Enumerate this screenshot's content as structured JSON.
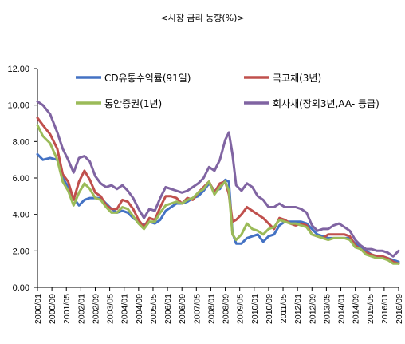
{
  "chart_data": {
    "type": "line",
    "title": "<시장 금리 동향(%)>",
    "xlabel": "",
    "ylabel": "",
    "ylim": [
      0,
      12
    ],
    "yticks": [
      "0.00",
      "2.00",
      "4.00",
      "6.00",
      "8.00",
      "10.00",
      "12.00"
    ],
    "xlim": [
      "2000/01",
      "2016/09"
    ],
    "xticks": [
      "2000/01",
      "2000/09",
      "2001/05",
      "2002/01",
      "2002/09",
      "2003/05",
      "2004/01",
      "2004/09",
      "2005/05",
      "2006/01",
      "2006/09",
      "2007/05",
      "2008/01",
      "2008/09",
      "2009/05",
      "2010/01",
      "2010/09",
      "2011/05",
      "2012/01",
      "2012/09",
      "2013/05",
      "2014/01",
      "2014/09",
      "2015/05",
      "2016/01",
      "2016/09"
    ],
    "grid": false,
    "legend_position": "top",
    "series": [
      {
        "name": "CD유통수익률(91일)",
        "color": "#4472C4",
        "x": [
          "2000/01",
          "2000/04",
          "2000/08",
          "2000/12",
          "2001/03",
          "2001/06",
          "2001/09",
          "2001/12",
          "2002/03",
          "2002/06",
          "2002/09",
          "2002/12",
          "2003/03",
          "2003/06",
          "2003/09",
          "2003/12",
          "2004/03",
          "2004/06",
          "2004/09",
          "2004/12",
          "2005/03",
          "2005/06",
          "2005/09",
          "2005/12",
          "2006/03",
          "2006/06",
          "2006/09",
          "2006/12",
          "2007/03",
          "2007/06",
          "2007/09",
          "2007/12",
          "2008/03",
          "2008/06",
          "2008/09",
          "2008/11",
          "2009/01",
          "2009/03",
          "2009/06",
          "2009/09",
          "2009/12",
          "2010/03",
          "2010/06",
          "2010/09",
          "2010/12",
          "2011/03",
          "2011/06",
          "2011/09",
          "2011/12",
          "2012/03",
          "2012/06",
          "2012/09",
          "2012/12",
          "2013/03",
          "2013/06",
          "2013/09",
          "2013/12",
          "2014/03",
          "2014/06",
          "2014/09",
          "2014/12",
          "2015/03",
          "2015/06",
          "2015/09",
          "2015/12",
          "2016/03",
          "2016/06",
          "2016/09"
        ],
        "y": [
          7.3,
          7.0,
          7.1,
          7.0,
          6.0,
          5.5,
          4.9,
          4.5,
          4.8,
          4.9,
          4.9,
          4.9,
          4.6,
          4.3,
          4.1,
          4.2,
          4.1,
          3.8,
          3.6,
          3.4,
          3.6,
          3.5,
          3.7,
          4.2,
          4.4,
          4.6,
          4.6,
          4.7,
          4.9,
          5.0,
          5.3,
          5.7,
          5.3,
          5.4,
          5.9,
          5.8,
          3.0,
          2.4,
          2.4,
          2.7,
          2.8,
          2.9,
          2.5,
          2.8,
          2.9,
          3.4,
          3.6,
          3.6,
          3.6,
          3.6,
          3.5,
          3.2,
          2.9,
          2.8,
          2.7,
          2.7,
          2.7,
          2.7,
          2.7,
          2.4,
          2.2,
          2.0,
          1.8,
          1.7,
          1.7,
          1.6,
          1.5,
          1.4
        ]
      },
      {
        "name": "국고채(3년)",
        "color": "#C0504D",
        "x": [
          "2000/01",
          "2000/04",
          "2000/08",
          "2000/12",
          "2001/03",
          "2001/06",
          "2001/09",
          "2001/12",
          "2002/03",
          "2002/06",
          "2002/09",
          "2002/12",
          "2003/03",
          "2003/06",
          "2003/09",
          "2003/12",
          "2004/03",
          "2004/06",
          "2004/09",
          "2004/12",
          "2005/03",
          "2005/06",
          "2005/09",
          "2005/12",
          "2006/03",
          "2006/06",
          "2006/09",
          "2006/12",
          "2007/03",
          "2007/06",
          "2007/09",
          "2007/12",
          "2008/03",
          "2008/06",
          "2008/09",
          "2008/11",
          "2009/01",
          "2009/03",
          "2009/06",
          "2009/09",
          "2009/12",
          "2010/03",
          "2010/06",
          "2010/09",
          "2010/12",
          "2011/03",
          "2011/06",
          "2011/09",
          "2011/12",
          "2012/03",
          "2012/06",
          "2012/09",
          "2012/12",
          "2013/03",
          "2013/06",
          "2013/09",
          "2013/12",
          "2014/03",
          "2014/06",
          "2014/09",
          "2014/12",
          "2015/03",
          "2015/06",
          "2015/09",
          "2015/12",
          "2016/03",
          "2016/06",
          "2016/09"
        ],
        "y": [
          9.3,
          8.9,
          8.4,
          7.6,
          6.2,
          5.8,
          4.8,
          5.8,
          6.4,
          5.9,
          5.2,
          5.0,
          4.5,
          4.3,
          4.3,
          4.8,
          4.7,
          4.3,
          3.7,
          3.3,
          3.8,
          3.7,
          4.4,
          5.0,
          5.0,
          4.9,
          4.6,
          4.9,
          4.8,
          5.2,
          5.5,
          5.8,
          5.2,
          5.7,
          5.8,
          5.1,
          3.6,
          3.7,
          4.0,
          4.4,
          4.2,
          4.0,
          3.8,
          3.5,
          3.2,
          3.8,
          3.7,
          3.5,
          3.4,
          3.5,
          3.4,
          2.9,
          2.8,
          2.7,
          2.9,
          2.9,
          2.9,
          2.9,
          2.8,
          2.3,
          2.1,
          1.9,
          1.8,
          1.7,
          1.7,
          1.6,
          1.4,
          1.3
        ]
      },
      {
        "name": "통안증권(1년)",
        "color": "#9BBB59",
        "x": [
          "2000/01",
          "2000/04",
          "2000/08",
          "2000/12",
          "2001/03",
          "2001/06",
          "2001/09",
          "2001/12",
          "2002/03",
          "2002/06",
          "2002/09",
          "2002/12",
          "2003/03",
          "2003/06",
          "2003/09",
          "2003/12",
          "2004/03",
          "2004/06",
          "2004/09",
          "2004/12",
          "2005/03",
          "2005/06",
          "2005/09",
          "2005/12",
          "2006/03",
          "2006/06",
          "2006/09",
          "2006/12",
          "2007/03",
          "2007/06",
          "2007/09",
          "2007/12",
          "2008/03",
          "2008/06",
          "2008/09",
          "2008/11",
          "2009/01",
          "2009/03",
          "2009/06",
          "2009/09",
          "2009/12",
          "2010/03",
          "2010/06",
          "2010/09",
          "2010/12",
          "2011/03",
          "2011/06",
          "2011/09",
          "2011/12",
          "2012/03",
          "2012/06",
          "2012/09",
          "2012/12",
          "2013/03",
          "2013/06",
          "2013/09",
          "2013/12",
          "2014/03",
          "2014/06",
          "2014/09",
          "2014/12",
          "2015/03",
          "2015/06",
          "2015/09",
          "2015/12",
          "2016/03",
          "2016/06",
          "2016/09"
        ],
        "y": [
          8.9,
          8.3,
          7.9,
          7.0,
          5.8,
          5.3,
          4.5,
          5.2,
          5.7,
          5.4,
          4.9,
          4.8,
          4.4,
          4.1,
          4.1,
          4.4,
          4.3,
          3.9,
          3.5,
          3.2,
          3.6,
          3.6,
          4.1,
          4.5,
          4.6,
          4.7,
          4.6,
          4.8,
          4.9,
          5.2,
          5.4,
          5.8,
          5.1,
          5.5,
          5.8,
          5.3,
          2.9,
          2.6,
          2.9,
          3.5,
          3.2,
          3.1,
          2.9,
          3.2,
          3.3,
          3.7,
          3.6,
          3.5,
          3.5,
          3.4,
          3.3,
          2.9,
          2.8,
          2.7,
          2.6,
          2.7,
          2.7,
          2.7,
          2.6,
          2.2,
          2.1,
          1.8,
          1.7,
          1.6,
          1.6,
          1.5,
          1.3,
          1.3
        ]
      },
      {
        "name": "회사채(장외3년,AA- 등급)",
        "color": "#8064A2",
        "x": [
          "2000/01",
          "2000/04",
          "2000/08",
          "2000/12",
          "2001/03",
          "2001/06",
          "2001/09",
          "2001/12",
          "2002/03",
          "2002/06",
          "2002/09",
          "2002/12",
          "2003/03",
          "2003/06",
          "2003/09",
          "2003/12",
          "2004/03",
          "2004/06",
          "2004/09",
          "2004/12",
          "2005/03",
          "2005/06",
          "2005/09",
          "2005/12",
          "2006/03",
          "2006/06",
          "2006/09",
          "2006/12",
          "2007/03",
          "2007/06",
          "2007/09",
          "2007/12",
          "2008/03",
          "2008/06",
          "2008/09",
          "2008/11",
          "2009/01",
          "2009/03",
          "2009/06",
          "2009/09",
          "2009/12",
          "2010/03",
          "2010/06",
          "2010/09",
          "2010/12",
          "2011/03",
          "2011/06",
          "2011/09",
          "2011/12",
          "2012/03",
          "2012/06",
          "2012/09",
          "2012/12",
          "2013/03",
          "2013/06",
          "2013/09",
          "2013/12",
          "2014/03",
          "2014/06",
          "2014/09",
          "2014/12",
          "2015/03",
          "2015/06",
          "2015/09",
          "2015/12",
          "2016/03",
          "2016/06",
          "2016/09"
        ],
        "y": [
          10.2,
          10.0,
          9.5,
          8.5,
          7.6,
          7.0,
          6.3,
          7.1,
          7.2,
          6.9,
          6.1,
          5.7,
          5.5,
          5.6,
          5.4,
          5.6,
          5.3,
          4.9,
          4.3,
          3.8,
          4.3,
          4.2,
          4.9,
          5.5,
          5.4,
          5.3,
          5.2,
          5.3,
          5.5,
          5.7,
          6.0,
          6.6,
          6.4,
          7.0,
          8.1,
          8.5,
          7.3,
          5.6,
          5.3,
          5.7,
          5.5,
          5.0,
          4.8,
          4.4,
          4.4,
          4.6,
          4.4,
          4.4,
          4.4,
          4.3,
          4.1,
          3.4,
          3.1,
          3.2,
          3.2,
          3.4,
          3.5,
          3.3,
          3.1,
          2.6,
          2.3,
          2.1,
          2.1,
          2.0,
          2.0,
          1.9,
          1.7,
          2.0
        ]
      }
    ]
  }
}
